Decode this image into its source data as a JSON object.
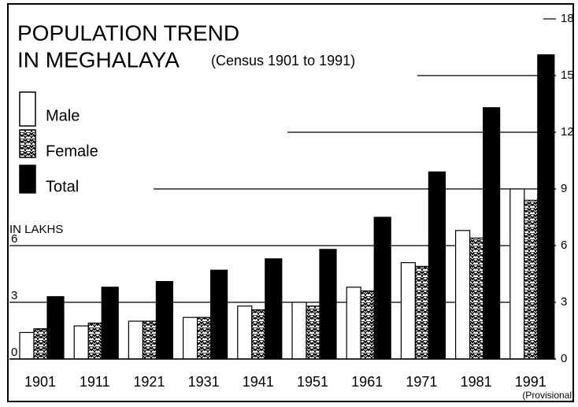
{
  "chart_data": {
    "type": "bar",
    "title": [
      "POPULATION TREND",
      "IN MEGHALAYA"
    ],
    "subtitle": "(Census 1901 to 1991)",
    "y_label": "IN LAKHS",
    "annotation": "(Provisional)",
    "categories": [
      "1901",
      "1911",
      "1921",
      "1931",
      "1941",
      "1951",
      "1961",
      "1971",
      "1981",
      "1991"
    ],
    "series": [
      {
        "name": "Male",
        "color": "#000000",
        "fill": "outline",
        "values": [
          1.4,
          1.75,
          2.0,
          2.2,
          2.8,
          3.0,
          3.8,
          5.1,
          6.8,
          9.0
        ]
      },
      {
        "name": "Female",
        "color": "#000000",
        "fill": "hatched",
        "values": [
          1.6,
          1.9,
          2.0,
          2.2,
          2.6,
          2.8,
          3.6,
          4.9,
          6.4,
          8.4
        ]
      },
      {
        "name": "Total",
        "color": "#000000",
        "fill": "solid",
        "values": [
          3.3,
          3.8,
          4.1,
          4.7,
          5.3,
          5.8,
          7.5,
          9.9,
          13.3,
          16.1
        ]
      }
    ],
    "ylim": [
      0,
      18
    ],
    "yticks": [
      0,
      3,
      6,
      9,
      12,
      15,
      18
    ],
    "grid": true
  }
}
